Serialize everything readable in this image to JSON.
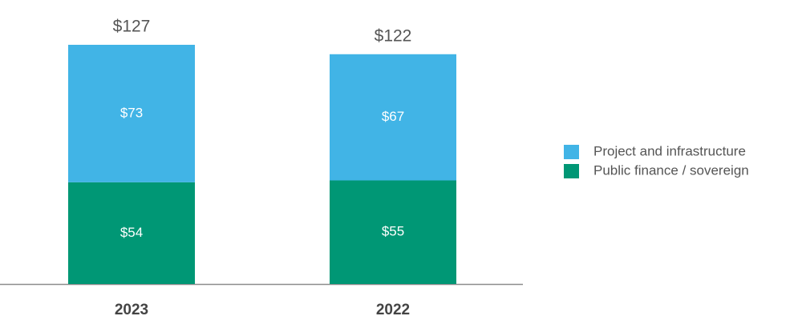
{
  "chart_data": {
    "type": "stacked_bar",
    "categories": [
      "2023",
      "2022"
    ],
    "series": [
      {
        "name": "Public finance / sovereign",
        "color": "#009775",
        "values": [
          54,
          55
        ],
        "value_labels": [
          "$54",
          "$55"
        ]
      },
      {
        "name": "Project and infrastructure",
        "color": "#41b4e6",
        "values": [
          73,
          67
        ],
        "value_labels": [
          "$73",
          "$67"
        ]
      }
    ],
    "totals": [
      127,
      122
    ],
    "total_labels": [
      "$127",
      "$122"
    ]
  }
}
